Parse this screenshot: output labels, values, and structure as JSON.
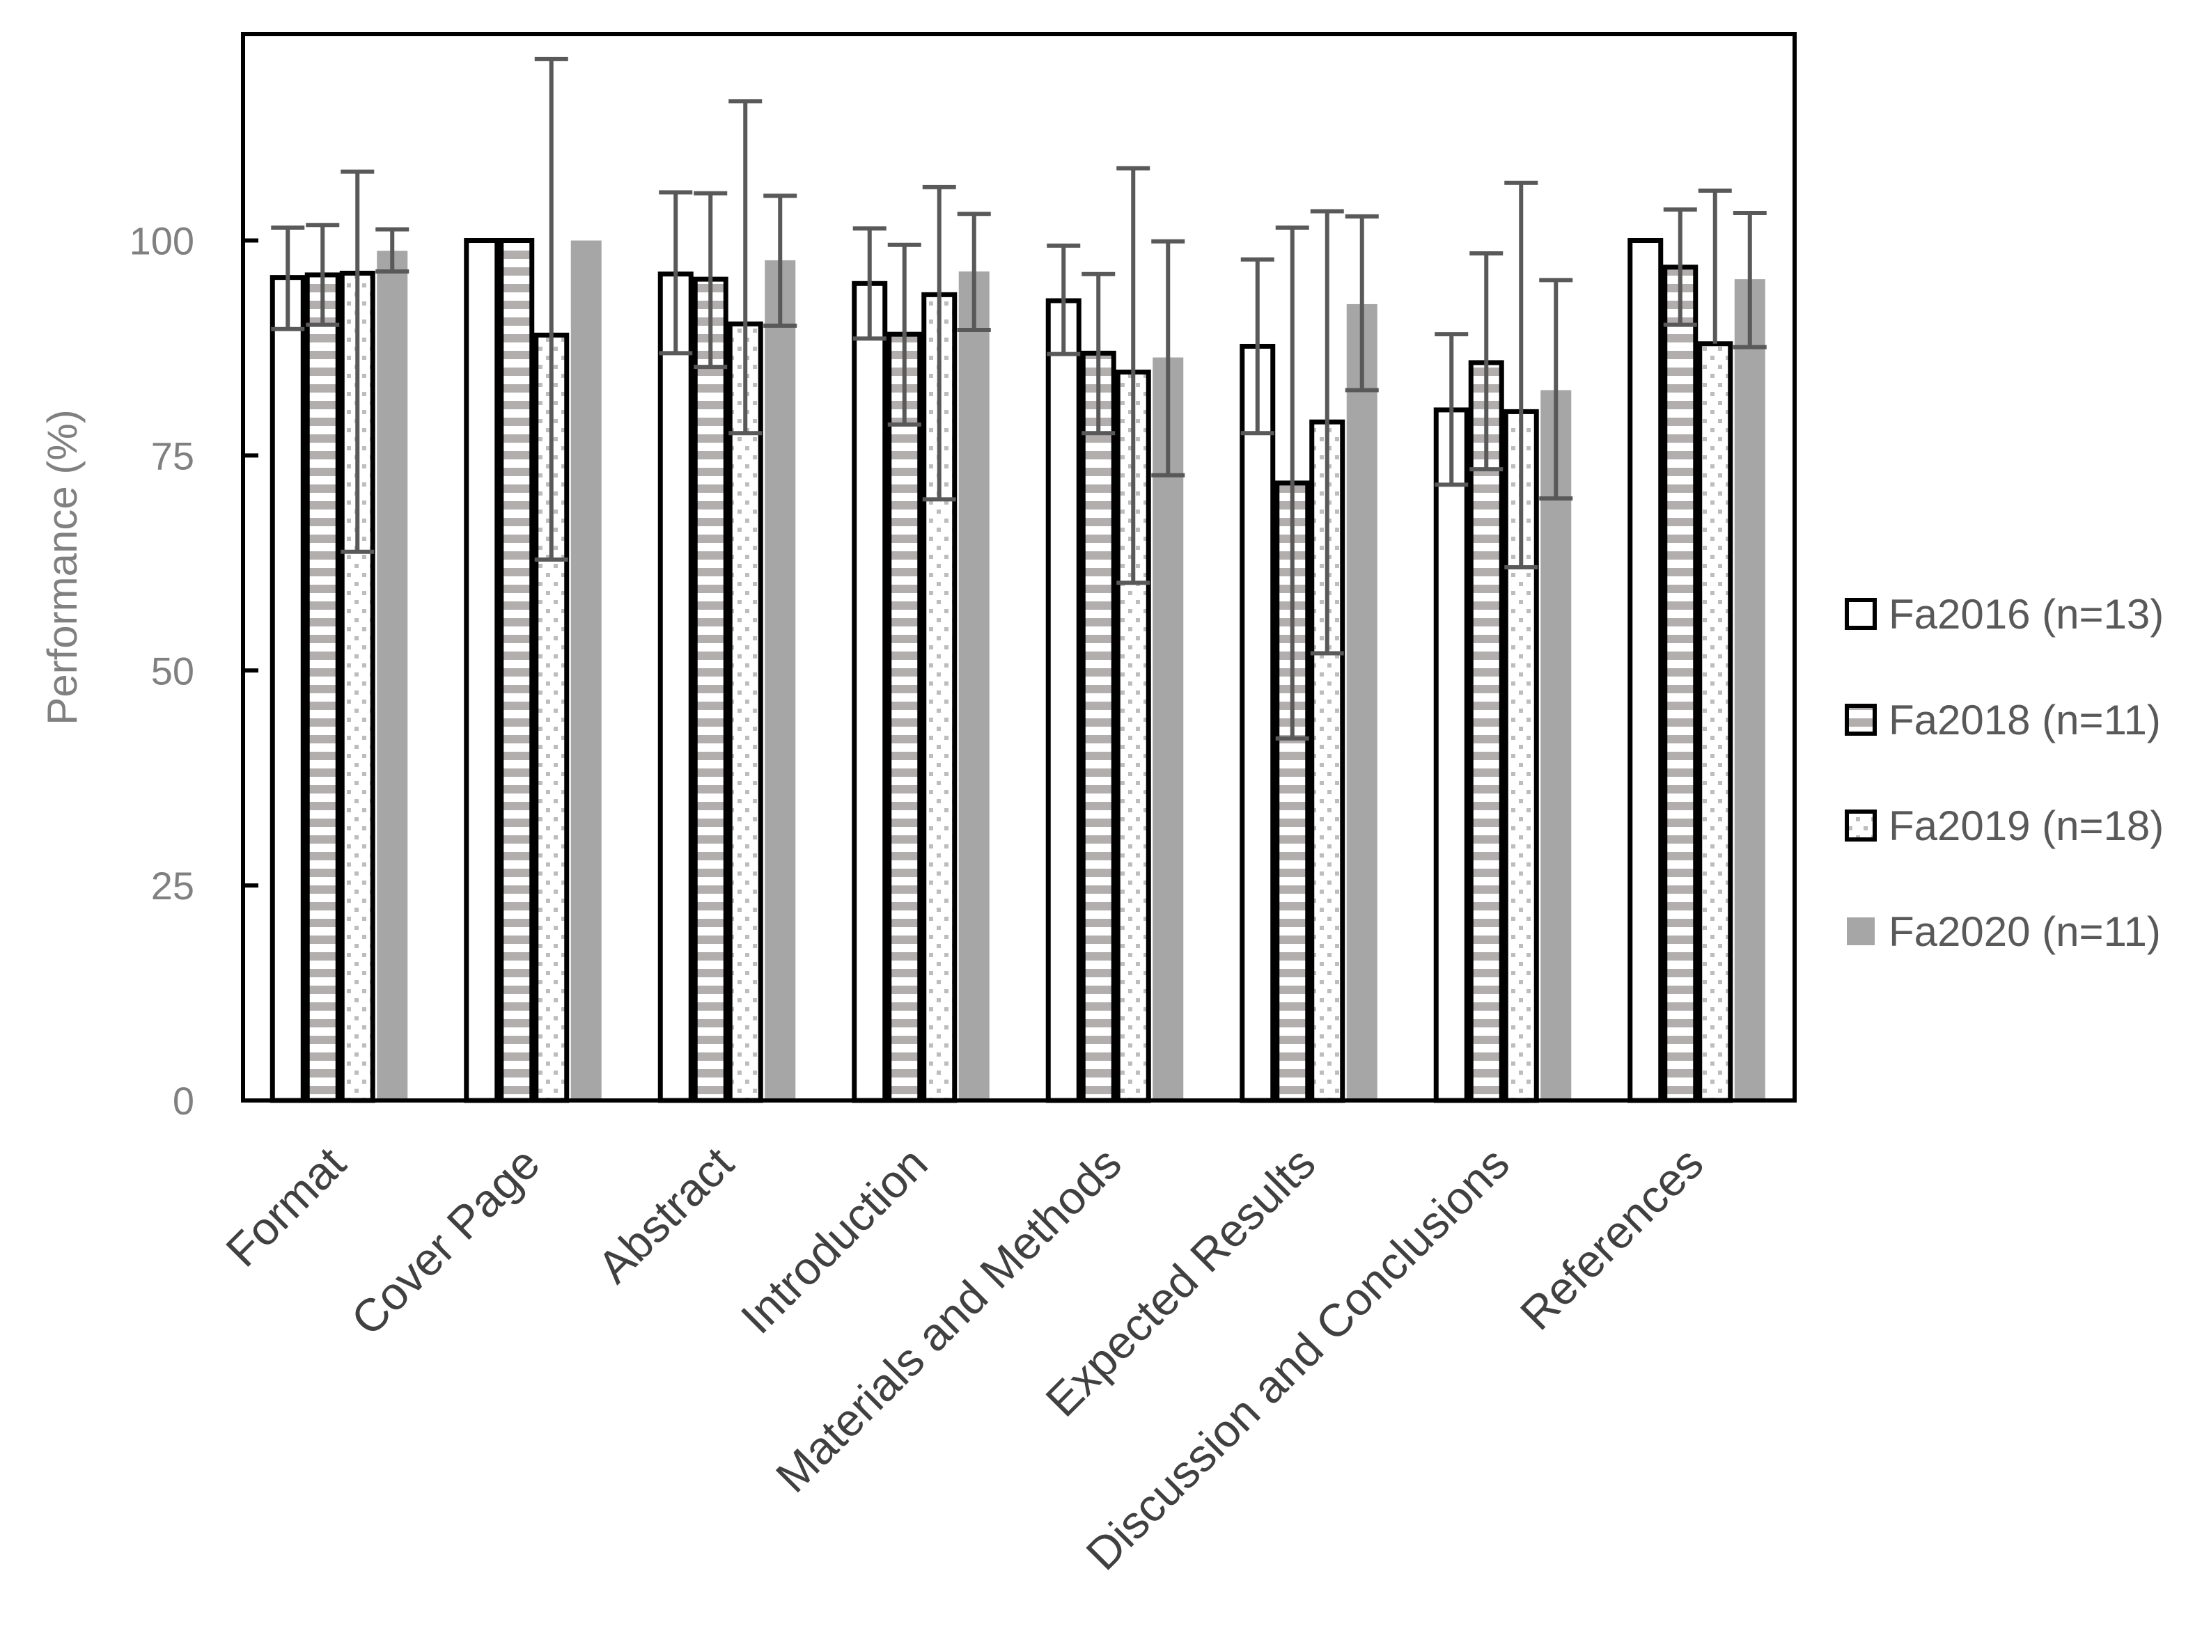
{
  "chart_data": {
    "type": "bar",
    "title": "",
    "xlabel": "",
    "ylabel": "Performance (%)",
    "ylim": [
      0,
      124
    ],
    "yticks": [
      0,
      25,
      50,
      75,
      100
    ],
    "grid": false,
    "legend_position": "right",
    "categories": [
      "Format",
      "Cover Page",
      "Abstract",
      "Introduction",
      "Materials and Methods",
      "Expected Results",
      "Discussion and Conclusions",
      "References"
    ],
    "series": [
      {
        "name": "Fa2016 (n=13)",
        "fill": "white-outlined",
        "color": "#ffffff",
        "values": [
          95.7,
          100,
          96.1,
          95.0,
          93.0,
          87.7,
          80.3,
          100
        ],
        "err_low": [
          89.7,
          null,
          86.9,
          88.6,
          86.8,
          77.6,
          71.6,
          null
        ],
        "err_high": [
          101.5,
          null,
          105.6,
          101.4,
          99.4,
          97.8,
          89.1,
          null
        ]
      },
      {
        "name": "Fa2018 (n=11)",
        "fill": "horizontal-stripes",
        "color": "#b3aeae",
        "values": [
          96.0,
          100,
          95.5,
          89.1,
          86.9,
          71.8,
          85.8,
          96.9
        ],
        "err_low": [
          90.2,
          null,
          85.3,
          78.6,
          77.6,
          42.1,
          73.4,
          90.2
        ],
        "err_high": [
          101.8,
          null,
          105.5,
          99.5,
          96.1,
          101.5,
          98.5,
          103.6
        ]
      },
      {
        "name": "Fa2019 (n=18)",
        "fill": "dotted",
        "color": "#b8b8b8",
        "values": [
          96.2,
          89.0,
          90.3,
          93.7,
          84.7,
          78.9,
          80.1,
          88.0
        ],
        "err_low": [
          63.8,
          62.9,
          77.6,
          69.9,
          60.2,
          52.0,
          62.0,
          null
        ],
        "err_high": [
          108.0,
          121.1,
          116.2,
          106.2,
          108.4,
          103.4,
          106.7,
          105.8
        ]
      },
      {
        "name": "Fa2020 (n=11)",
        "fill": "solid",
        "color": "#a6a6a6",
        "values": [
          98.8,
          100,
          97.7,
          96.4,
          86.4,
          92.6,
          82.6,
          95.5
        ],
        "err_low": [
          96.4,
          null,
          90.1,
          89.6,
          72.7,
          82.6,
          70.0,
          87.6
        ],
        "err_high": [
          101.3,
          null,
          105.2,
          103.1,
          99.9,
          102.8,
          95.4,
          103.2
        ]
      }
    ],
    "error_bar_color": "#595959"
  }
}
